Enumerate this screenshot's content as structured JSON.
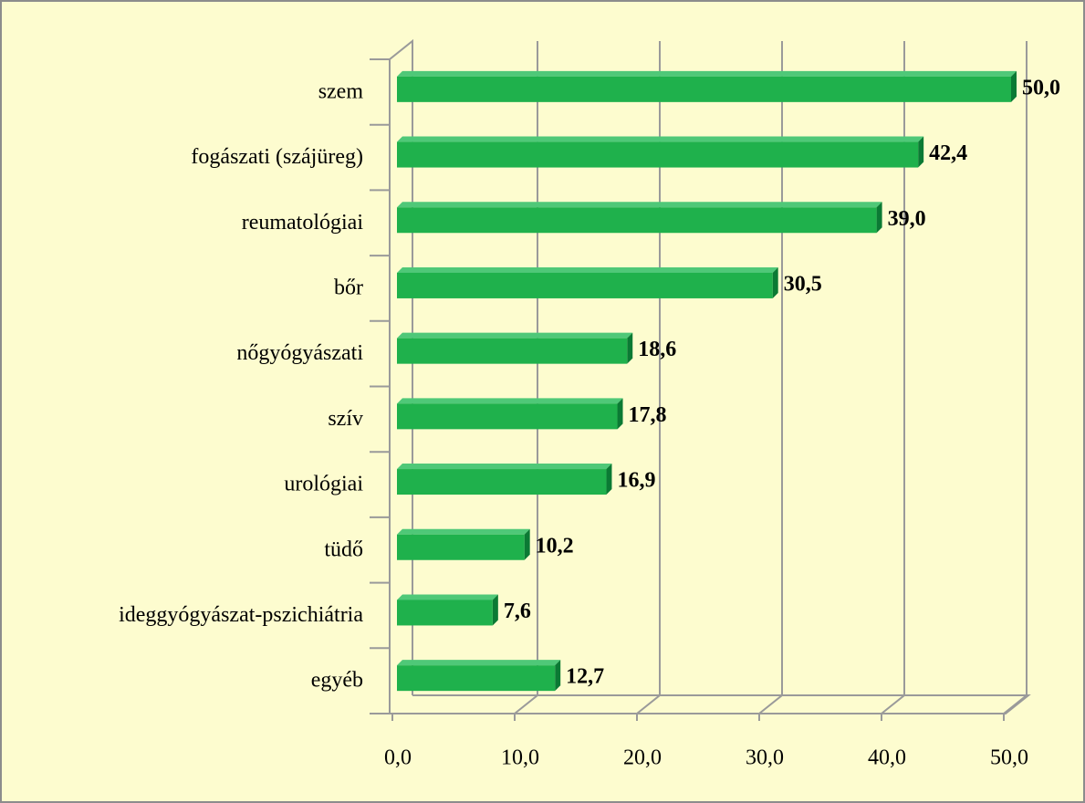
{
  "chart_data": {
    "type": "bar",
    "orientation": "horizontal",
    "categories": [
      "szem",
      "fogászati (szájüreg)",
      "reumatológiai",
      "bőr",
      "nőgyógyászati",
      "szív",
      "urológiai",
      "tüdő",
      "ideggyógyászat-pszichiátria",
      "egyéb"
    ],
    "values": [
      50.0,
      42.4,
      39.0,
      30.5,
      18.6,
      17.8,
      16.9,
      10.2,
      7.6,
      12.7
    ],
    "value_labels": [
      "50,0",
      "42,4",
      "39,0",
      "30,5",
      "18,6",
      "17,8",
      "16,9",
      "10,2",
      "7,6",
      "12,7"
    ],
    "color": "#1fb14c",
    "xlim": [
      0,
      50
    ],
    "xticks": [
      {
        "value": 0,
        "label": "0,0"
      },
      {
        "value": 10,
        "label": "10,0"
      },
      {
        "value": 20,
        "label": "20,0"
      },
      {
        "value": 30,
        "label": "30,0"
      },
      {
        "value": 40,
        "label": "40,0"
      },
      {
        "value": 50,
        "label": "50,0"
      }
    ],
    "grid": true
  }
}
